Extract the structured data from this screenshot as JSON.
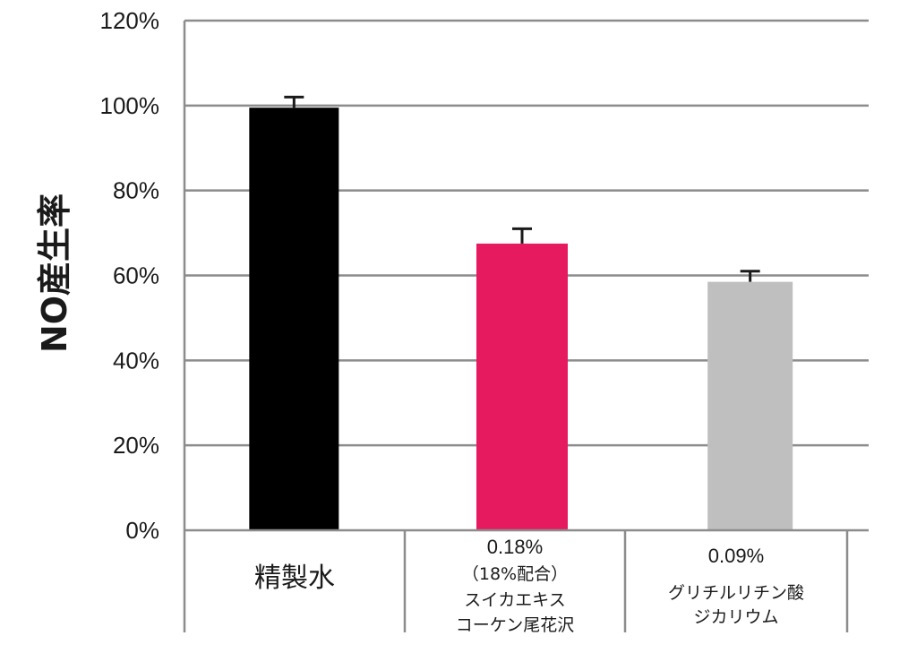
{
  "chart_data": {
    "type": "bar",
    "ylabel": "NO産生率",
    "ylim": [
      0,
      120
    ],
    "yticks": [
      "0%",
      "20%",
      "40%",
      "60%",
      "80%",
      "100%",
      "120%"
    ],
    "grid": true,
    "categories": [
      {
        "lines": [
          "精製水"
        ]
      },
      {
        "lines": [
          "0.18%",
          "（18%配合）",
          "スイカエキス",
          "コーケン尾花沢"
        ]
      },
      {
        "lines": [
          "0.09%",
          "グリチルリチン酸",
          "ジカリウム"
        ]
      }
    ],
    "values": [
      99.5,
      67.5,
      58.5
    ],
    "errors": [
      2.5,
      3.5,
      2.5
    ],
    "colors": [
      "#000000",
      "#e61a5e",
      "#bfbfbf"
    ]
  }
}
